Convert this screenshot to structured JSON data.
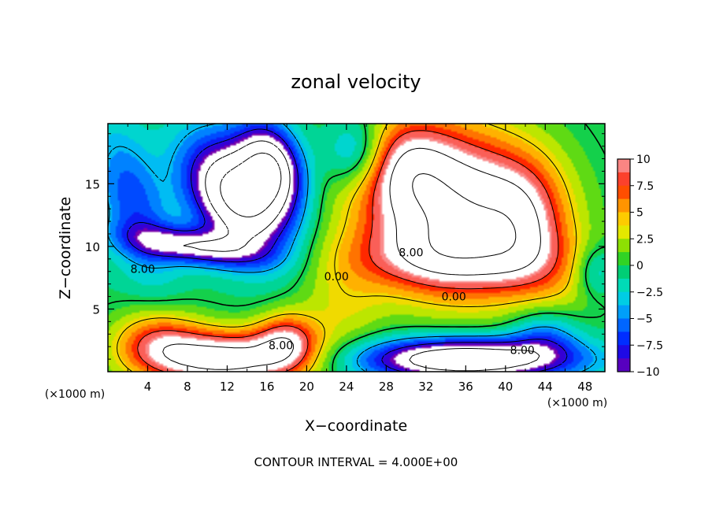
{
  "chart_data": {
    "type": "heatmap",
    "title": "zonal velocity",
    "xlabel": "X−coordinate",
    "ylabel": "Z−coordinate",
    "x_units": "(×1000 m)",
    "y_units": "(×1000 m)",
    "xlim": [
      0,
      50
    ],
    "ylim": [
      0,
      19.8
    ],
    "x_ticks": [
      4,
      8,
      12,
      16,
      20,
      24,
      28,
      32,
      36,
      40,
      44,
      48
    ],
    "y_ticks": [
      5,
      10,
      15
    ],
    "footer": "CONTOUR INTERVAL = 4.000E+00",
    "colorbar": {
      "range": [
        -10,
        10
      ],
      "ticks": [
        "10",
        "7.5",
        "5",
        "2.5",
        "0",
        "−2.5",
        "−5",
        "−7.5",
        "−10"
      ]
    },
    "contour_interval": 4.0,
    "contour_labels": [
      {
        "text": "8.00",
        "x": 3.5,
        "z": 7.9
      },
      {
        "text": "0.00",
        "x": 23.0,
        "z": 7.3
      },
      {
        "text": "8.00",
        "x": 30.5,
        "z": 9.2
      },
      {
        "text": "0.00",
        "x": 34.8,
        "z": 5.7
      },
      {
        "text": "8.00",
        "x": 17.4,
        "z": 1.8
      },
      {
        "text": "8.00",
        "x": 41.7,
        "z": 1.4
      }
    ],
    "features": [
      {
        "x": 13.0,
        "z": 14.0,
        "sx": 4.0,
        "sz": 2.6,
        "amp": -17,
        "rot": -0.62
      },
      {
        "x": 16.5,
        "z": 16.5,
        "sx": 2.6,
        "sz": 2.0,
        "amp": -13,
        "rot": -0.9
      },
      {
        "x": 8.5,
        "z": 10.0,
        "sx": 4.5,
        "sz": 1.0,
        "amp": -10,
        "rot": -0.1
      },
      {
        "x": 2.5,
        "z": 13.5,
        "sx": 2.2,
        "sz": 4.5,
        "amp": -6,
        "rot": 0.4
      },
      {
        "x": 25.0,
        "z": 17.5,
        "sx": 2.2,
        "sz": 2.0,
        "amp": -6,
        "rot": 0
      },
      {
        "x": 34.5,
        "z": 13.0,
        "sx": 6.5,
        "sz": 4.6,
        "amp": 16,
        "rot": -0.15
      },
      {
        "x": 34.0,
        "z": 9.0,
        "sx": 8.0,
        "sz": 1.8,
        "amp": 5,
        "rot": 0
      },
      {
        "x": 42.0,
        "z": 12.0,
        "sx": 3.0,
        "sz": 3.5,
        "amp": 6,
        "rot": 0
      },
      {
        "x": 30.0,
        "z": 16.5,
        "sx": 3.0,
        "sz": 2.5,
        "amp": 5,
        "rot": 0
      },
      {
        "x": 12.0,
        "z": 1.0,
        "sx": 5.5,
        "sz": 1.6,
        "amp": 14,
        "rot": 0
      },
      {
        "x": 5.0,
        "z": 2.5,
        "sx": 3.2,
        "sz": 1.8,
        "amp": 7,
        "rot": 0
      },
      {
        "x": 18.0,
        "z": 2.5,
        "sx": 2.2,
        "sz": 1.6,
        "amp": 8,
        "rot": 0
      },
      {
        "x": 36.0,
        "z": 1.0,
        "sx": 7.5,
        "sz": 1.2,
        "amp": -16,
        "rot": 0
      },
      {
        "x": 44.0,
        "z": 3.0,
        "sx": 2.5,
        "sz": 1.5,
        "amp": -5,
        "rot": 0
      },
      {
        "x": 49.0,
        "z": 8.0,
        "sx": 1.5,
        "sz": 1.5,
        "amp": -4,
        "rot": 0
      },
      {
        "x": 23.5,
        "z": 5.0,
        "sx": 3.0,
        "sz": 3.0,
        "amp": 3,
        "rot": 0
      },
      {
        "x": 46.0,
        "z": 6.5,
        "sx": 3.0,
        "sz": 2.5,
        "amp": 2,
        "rot": 0
      }
    ]
  }
}
